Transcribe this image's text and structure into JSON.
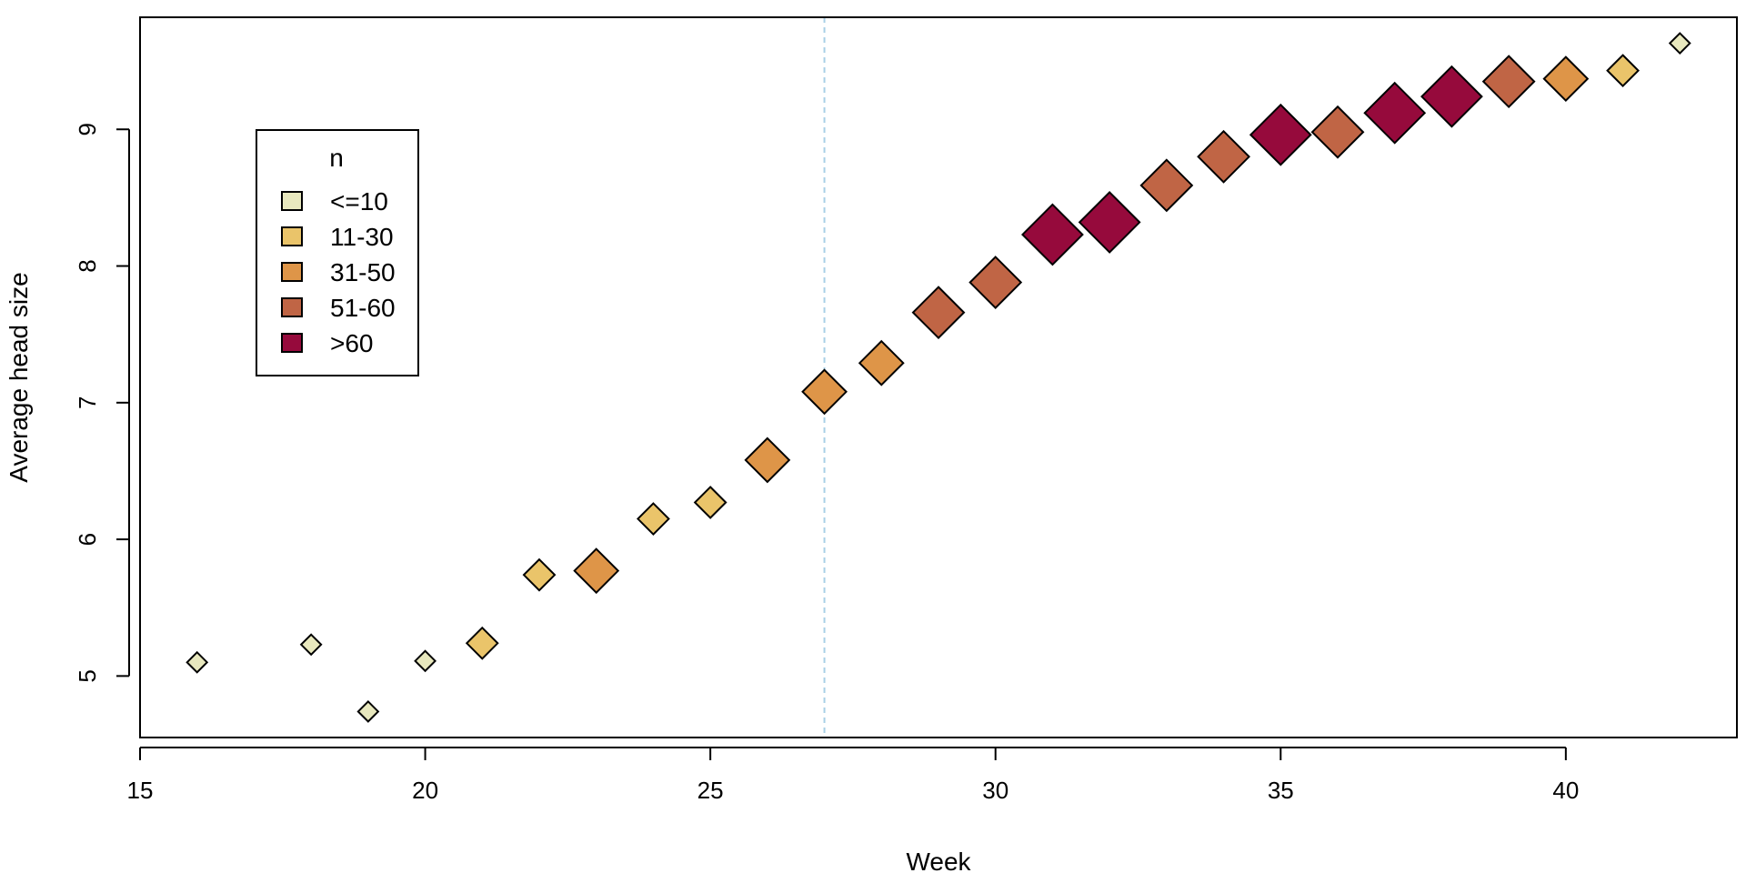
{
  "chart_data": {
    "type": "scatter",
    "xlabel": "Week",
    "ylabel": "Average head size",
    "xlim": [
      15,
      43
    ],
    "ylim": [
      4.55,
      9.82
    ],
    "xticks": [
      "15",
      "20",
      "25",
      "30",
      "35",
      "40"
    ],
    "yticks": [
      "5",
      "6",
      "7",
      "8",
      "9"
    ],
    "vline": {
      "x": 27,
      "color": "#a8d0e6",
      "style": "dashed"
    },
    "marker": "diamond",
    "legend": {
      "title": "n",
      "placement": "top-left",
      "items": [
        {
          "label": "<=10",
          "color": "#e8e8be"
        },
        {
          "label": "11-30",
          "color": "#eac46a"
        },
        {
          "label": "31-50",
          "color": "#de9548"
        },
        {
          "label": "51-60",
          "color": "#c06545"
        },
        {
          "label": ">60",
          "color": "#960a3c"
        }
      ]
    },
    "points": [
      {
        "x": 16,
        "y": 5.1,
        "group": "<=10"
      },
      {
        "x": 18,
        "y": 5.23,
        "group": "<=10"
      },
      {
        "x": 19,
        "y": 4.74,
        "group": "<=10"
      },
      {
        "x": 20,
        "y": 5.11,
        "group": "<=10"
      },
      {
        "x": 21,
        "y": 5.24,
        "group": "11-30"
      },
      {
        "x": 22,
        "y": 5.74,
        "group": "11-30"
      },
      {
        "x": 23,
        "y": 5.77,
        "group": "31-50"
      },
      {
        "x": 24,
        "y": 6.15,
        "group": "11-30"
      },
      {
        "x": 25,
        "y": 6.27,
        "group": "11-30"
      },
      {
        "x": 26,
        "y": 6.58,
        "group": "31-50"
      },
      {
        "x": 27,
        "y": 7.08,
        "group": "31-50"
      },
      {
        "x": 28,
        "y": 7.29,
        "group": "31-50"
      },
      {
        "x": 29,
        "y": 7.66,
        "group": "51-60"
      },
      {
        "x": 30,
        "y": 7.88,
        "group": "51-60"
      },
      {
        "x": 31,
        "y": 8.23,
        "group": ">60"
      },
      {
        "x": 32,
        "y": 8.32,
        "group": ">60"
      },
      {
        "x": 33,
        "y": 8.59,
        "group": "51-60"
      },
      {
        "x": 34,
        "y": 8.8,
        "group": "51-60"
      },
      {
        "x": 35,
        "y": 8.96,
        "group": ">60"
      },
      {
        "x": 36,
        "y": 8.98,
        "group": "51-60"
      },
      {
        "x": 37,
        "y": 9.12,
        "group": ">60"
      },
      {
        "x": 38,
        "y": 9.24,
        "group": ">60"
      },
      {
        "x": 39,
        "y": 9.35,
        "group": "51-60"
      },
      {
        "x": 40,
        "y": 9.37,
        "group": "31-50"
      },
      {
        "x": 41,
        "y": 9.43,
        "group": "11-30"
      },
      {
        "x": 42,
        "y": 9.63,
        "group": "<=10"
      }
    ],
    "grid": false
  }
}
